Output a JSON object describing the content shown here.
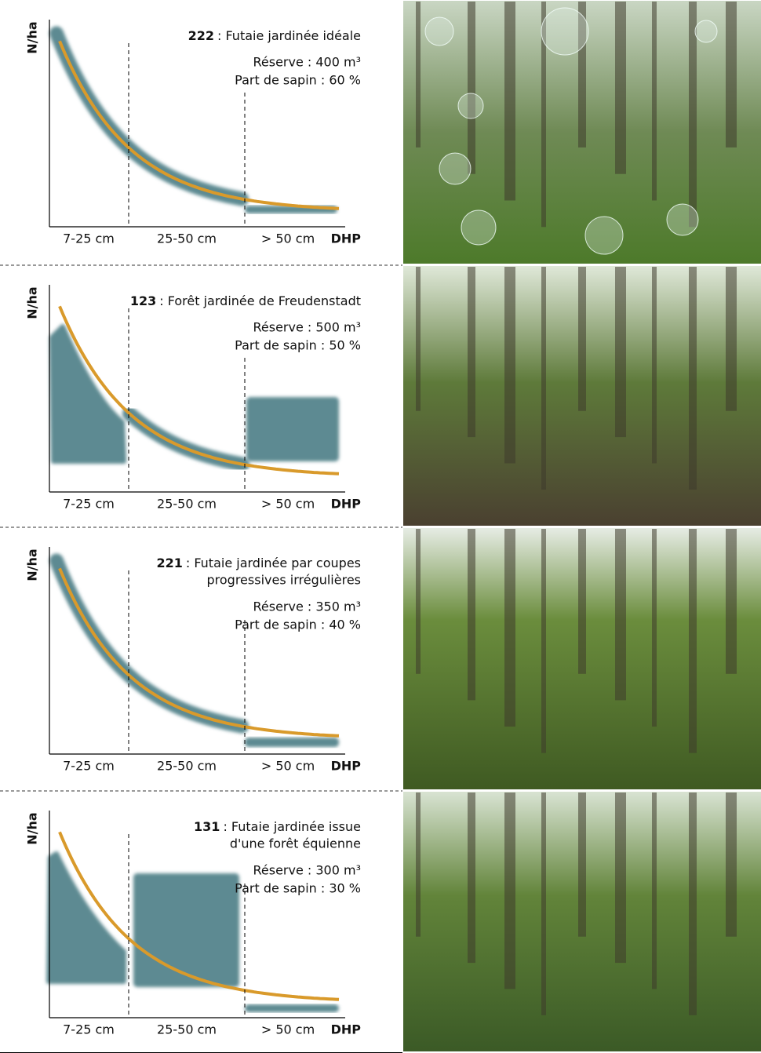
{
  "panels": [
    {
      "code": "222",
      "title_lines": [
        ": Futaie jardinée idéale"
      ],
      "reserve": "Réserve : 400 m³",
      "sapin": "Part de sapin : 60 %",
      "y_label": "N/ha",
      "x_labels": [
        "7-25 cm",
        "25-50 cm",
        "> 50 cm"
      ],
      "x_unit": "DHP"
    },
    {
      "code": "123",
      "title_lines": [
        ": Forêt jardinée de Freudenstadt"
      ],
      "reserve": "Réserve : 500 m³",
      "sapin": "Part de sapin : 50 %",
      "y_label": "N/ha",
      "x_labels": [
        "7-25 cm",
        "25-50 cm",
        "> 50 cm"
      ],
      "x_unit": "DHP"
    },
    {
      "code": "221",
      "title_lines": [
        ": Futaie jardinée par coupes",
        "progressives irrégulières"
      ],
      "reserve": "Réserve : 350 m³",
      "sapin": "Part de sapin : 40 %",
      "y_label": "N/ha",
      "x_labels": [
        "7-25 cm",
        "25-50 cm",
        "> 50 cm"
      ],
      "x_unit": "DHP"
    },
    {
      "code": "131",
      "title_lines": [
        ": Futaie jardinée issue",
        "d'une forêt équienne"
      ],
      "reserve": "Réserve : 300 m³",
      "sapin": "Part de sapin : 30 %",
      "y_label": "N/ha",
      "x_labels": [
        "7-25 cm",
        "25-50 cm",
        "> 50 cm"
      ],
      "x_unit": "DHP"
    }
  ]
}
